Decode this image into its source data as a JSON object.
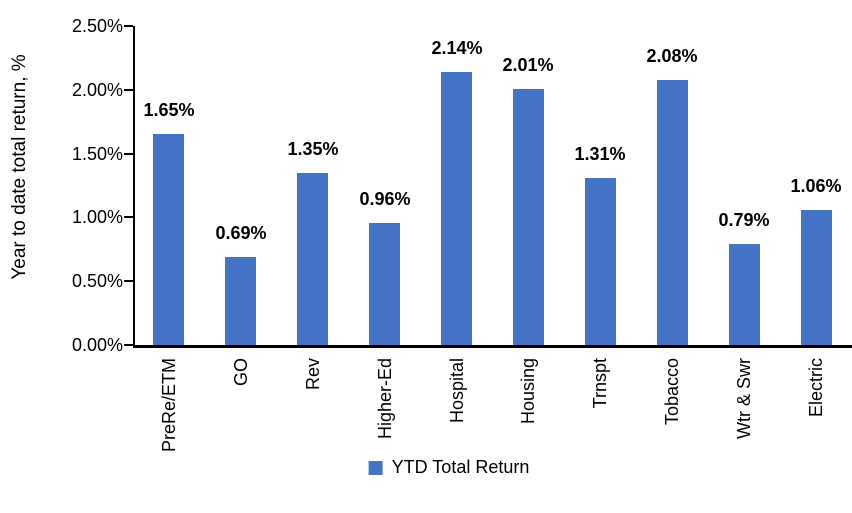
{
  "chart_data": {
    "type": "bar",
    "title": "",
    "ylabel": "Year to date total return, %",
    "xlabel": "",
    "categories": [
      "PreRe/ETM",
      "GO",
      "Rev",
      "Higher-Ed",
      "Hospital",
      "Housing",
      "Trnspt",
      "Tobacco",
      "Wtr & Swr",
      "Electric"
    ],
    "series": [
      {
        "name": "YTD Total Return",
        "values": [
          1.65,
          0.69,
          1.35,
          0.96,
          2.14,
          2.01,
          1.31,
          2.08,
          0.79,
          1.06
        ]
      }
    ],
    "data_labels": [
      "1.65%",
      "0.69%",
      "1.35%",
      "0.96%",
      "2.14%",
      "2.01%",
      "1.31%",
      "2.08%",
      "0.79%",
      "1.06%"
    ],
    "y_ticks": [
      "2.50%",
      "2.00%",
      "1.50%",
      "1.00%",
      "0.50%",
      "0.00%"
    ],
    "ylim": [
      0,
      2.5
    ],
    "grid": false,
    "bar_color": "#4472C4",
    "legend": {
      "position": "bottom",
      "entries": [
        {
          "label": "YTD Total Return",
          "color": "#4472C4"
        }
      ]
    }
  }
}
